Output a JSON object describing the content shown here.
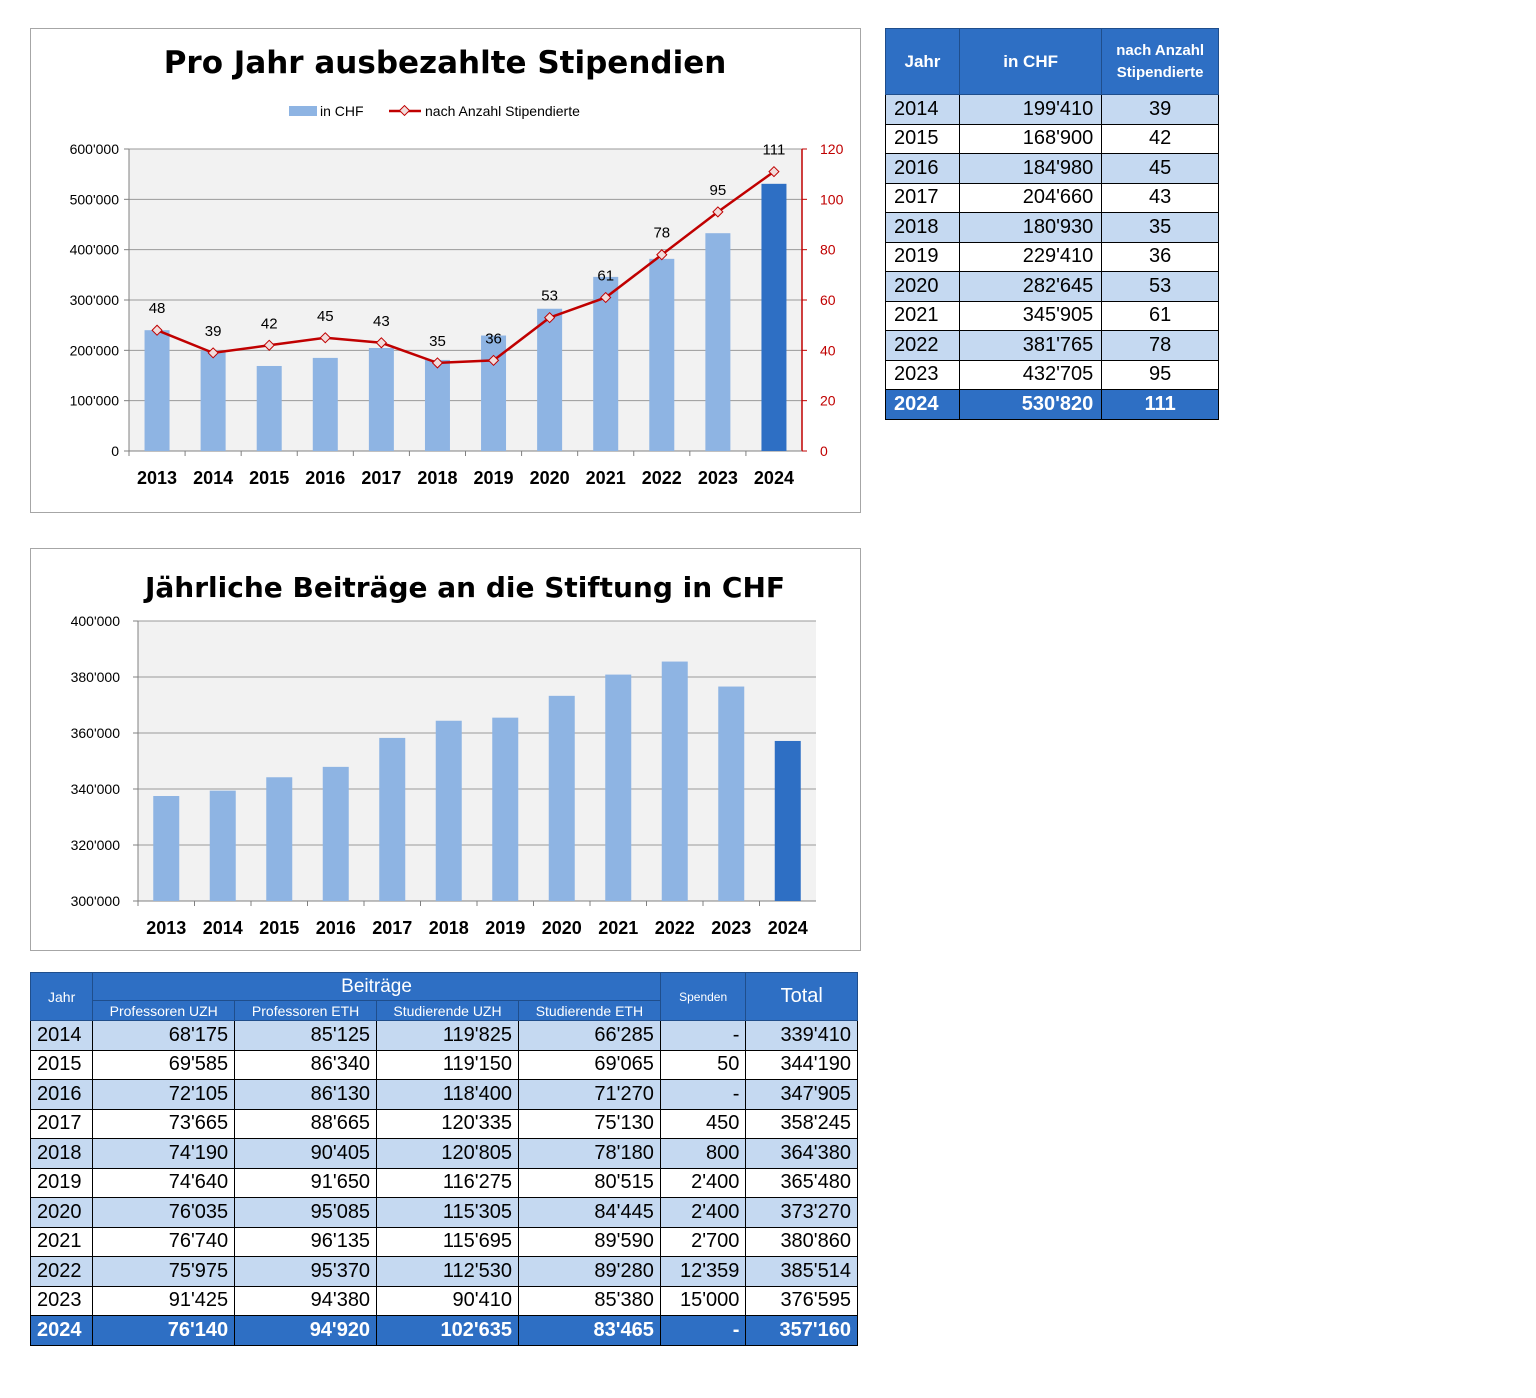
{
  "chart_data": [
    {
      "type": "bar+line",
      "title": "Pro Jahr ausbezahlte Stipendien",
      "categories": [
        "2013",
        "2014",
        "2015",
        "2016",
        "2017",
        "2018",
        "2019",
        "2020",
        "2021",
        "2022",
        "2023",
        "2024"
      ],
      "series": [
        {
          "name": "in CHF",
          "type": "bar",
          "axis": "left",
          "values": [
            240000,
            199410,
            168900,
            184980,
            204660,
            180930,
            229410,
            282645,
            345905,
            381765,
            432705,
            530820
          ],
          "color": "#8eb4e3",
          "highlight_color": "#2e6fc4"
        },
        {
          "name": "nach Anzahl Stipendierte",
          "type": "line",
          "axis": "right",
          "values": [
            48,
            39,
            42,
            45,
            43,
            35,
            36,
            53,
            61,
            78,
            95,
            111
          ],
          "color": "#c00000"
        }
      ],
      "ylim": [
        0,
        600000
      ],
      "yticks": [
        "0",
        "100'000",
        "200'000",
        "300'000",
        "400'000",
        "500'000",
        "600'000"
      ],
      "y2lim": [
        0,
        120
      ],
      "y2ticks": [
        "0",
        "20",
        "40",
        "60",
        "80",
        "100",
        "120"
      ],
      "legend": "top-center",
      "grid": true
    },
    {
      "type": "bar",
      "title": "Jährliche Beiträge an die Stiftung in CHF",
      "categories": [
        "2013",
        "2014",
        "2015",
        "2016",
        "2017",
        "2018",
        "2019",
        "2020",
        "2021",
        "2022",
        "2023",
        "2024"
      ],
      "values": [
        337500,
        339410,
        344190,
        347905,
        358245,
        364380,
        365480,
        373270,
        380860,
        385514,
        376595,
        357160
      ],
      "ylim": [
        300000,
        400000
      ],
      "yticks": [
        "300'000",
        "320'000",
        "340'000",
        "360'000",
        "380'000",
        "400'000"
      ],
      "grid": true,
      "color": "#8eb4e3",
      "highlight_color": "#2e6fc4"
    }
  ],
  "table1": {
    "headers": {
      "jahr": "Jahr",
      "chf": "in CHF",
      "anzahl_1": "nach Anzahl",
      "anzahl_2": "Stipendierte"
    },
    "rows": [
      [
        "2014",
        "199'410",
        "39"
      ],
      [
        "2015",
        "168'900",
        "42"
      ],
      [
        "2016",
        "184'980",
        "45"
      ],
      [
        "2017",
        "204'660",
        "43"
      ],
      [
        "2018",
        "180'930",
        "35"
      ],
      [
        "2019",
        "229'410",
        "36"
      ],
      [
        "2020",
        "282'645",
        "53"
      ],
      [
        "2021",
        "345'905",
        "61"
      ],
      [
        "2022",
        "381'765",
        "78"
      ],
      [
        "2023",
        "432'705",
        "95"
      ],
      [
        "2024",
        "530'820",
        "111"
      ]
    ]
  },
  "table2": {
    "headers": {
      "jahr": "Jahr",
      "beitraege": "Beiträge",
      "prof_uzh": "Professoren UZH",
      "prof_eth": "Professoren ETH",
      "stud_uzh": "Studierende UZH",
      "stud_eth": "Studierende ETH",
      "spenden": "Spenden",
      "total": "Total"
    },
    "rows": [
      [
        "2014",
        "68'175",
        "85'125",
        "119'825",
        "66'285",
        "-",
        "339'410"
      ],
      [
        "2015",
        "69'585",
        "86'340",
        "119'150",
        "69'065",
        "50",
        "344'190"
      ],
      [
        "2016",
        "72'105",
        "86'130",
        "118'400",
        "71'270",
        "-",
        "347'905"
      ],
      [
        "2017",
        "73'665",
        "88'665",
        "120'335",
        "75'130",
        "450",
        "358'245"
      ],
      [
        "2018",
        "74'190",
        "90'405",
        "120'805",
        "78'180",
        "800",
        "364'380"
      ],
      [
        "2019",
        "74'640",
        "91'650",
        "116'275",
        "80'515",
        "2'400",
        "365'480"
      ],
      [
        "2020",
        "76'035",
        "95'085",
        "115'305",
        "84'445",
        "2'400",
        "373'270"
      ],
      [
        "2021",
        "76'740",
        "96'135",
        "115'695",
        "89'590",
        "2'700",
        "380'860"
      ],
      [
        "2022",
        "75'975",
        "95'370",
        "112'530",
        "89'280",
        "12'359",
        "385'514"
      ],
      [
        "2023",
        "91'425",
        "94'380",
        "90'410",
        "85'380",
        "15'000",
        "376'595"
      ],
      [
        "2024",
        "76'140",
        "94'920",
        "102'635",
        "83'465",
        "-",
        "357'160"
      ]
    ]
  }
}
